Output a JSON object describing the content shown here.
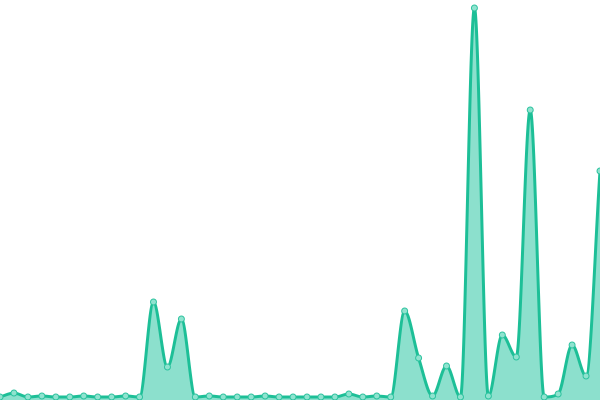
{
  "chart_data": {
    "type": "area",
    "title": "",
    "xlabel": "",
    "ylabel": "",
    "grid": false,
    "legend": "none",
    "x": [
      0,
      1,
      2,
      3,
      4,
      5,
      6,
      7,
      8,
      9,
      10,
      11,
      12,
      13,
      14,
      15,
      16,
      17,
      18,
      19,
      20,
      21,
      22,
      23,
      24,
      25,
      26,
      27,
      28,
      29,
      30,
      31,
      32,
      33,
      34,
      35,
      36,
      37,
      38,
      39,
      40,
      41,
      42,
      43
    ],
    "values": [
      0,
      4,
      0,
      1,
      0,
      0,
      1,
      0,
      0,
      1,
      0,
      95,
      30,
      78,
      0,
      1,
      0,
      0,
      0,
      1,
      0,
      0,
      0,
      0,
      0,
      3,
      0,
      1,
      0,
      86,
      39,
      1,
      31,
      0,
      389,
      1,
      62,
      40,
      287,
      0,
      3,
      52,
      21,
      226
    ],
    "ylim": [
      0,
      389
    ],
    "colors": {
      "line": "#1dbf97",
      "fill": "#8ce0cd",
      "point_fill": "#8fe3cf",
      "point_stroke": "#2cc29e"
    }
  }
}
